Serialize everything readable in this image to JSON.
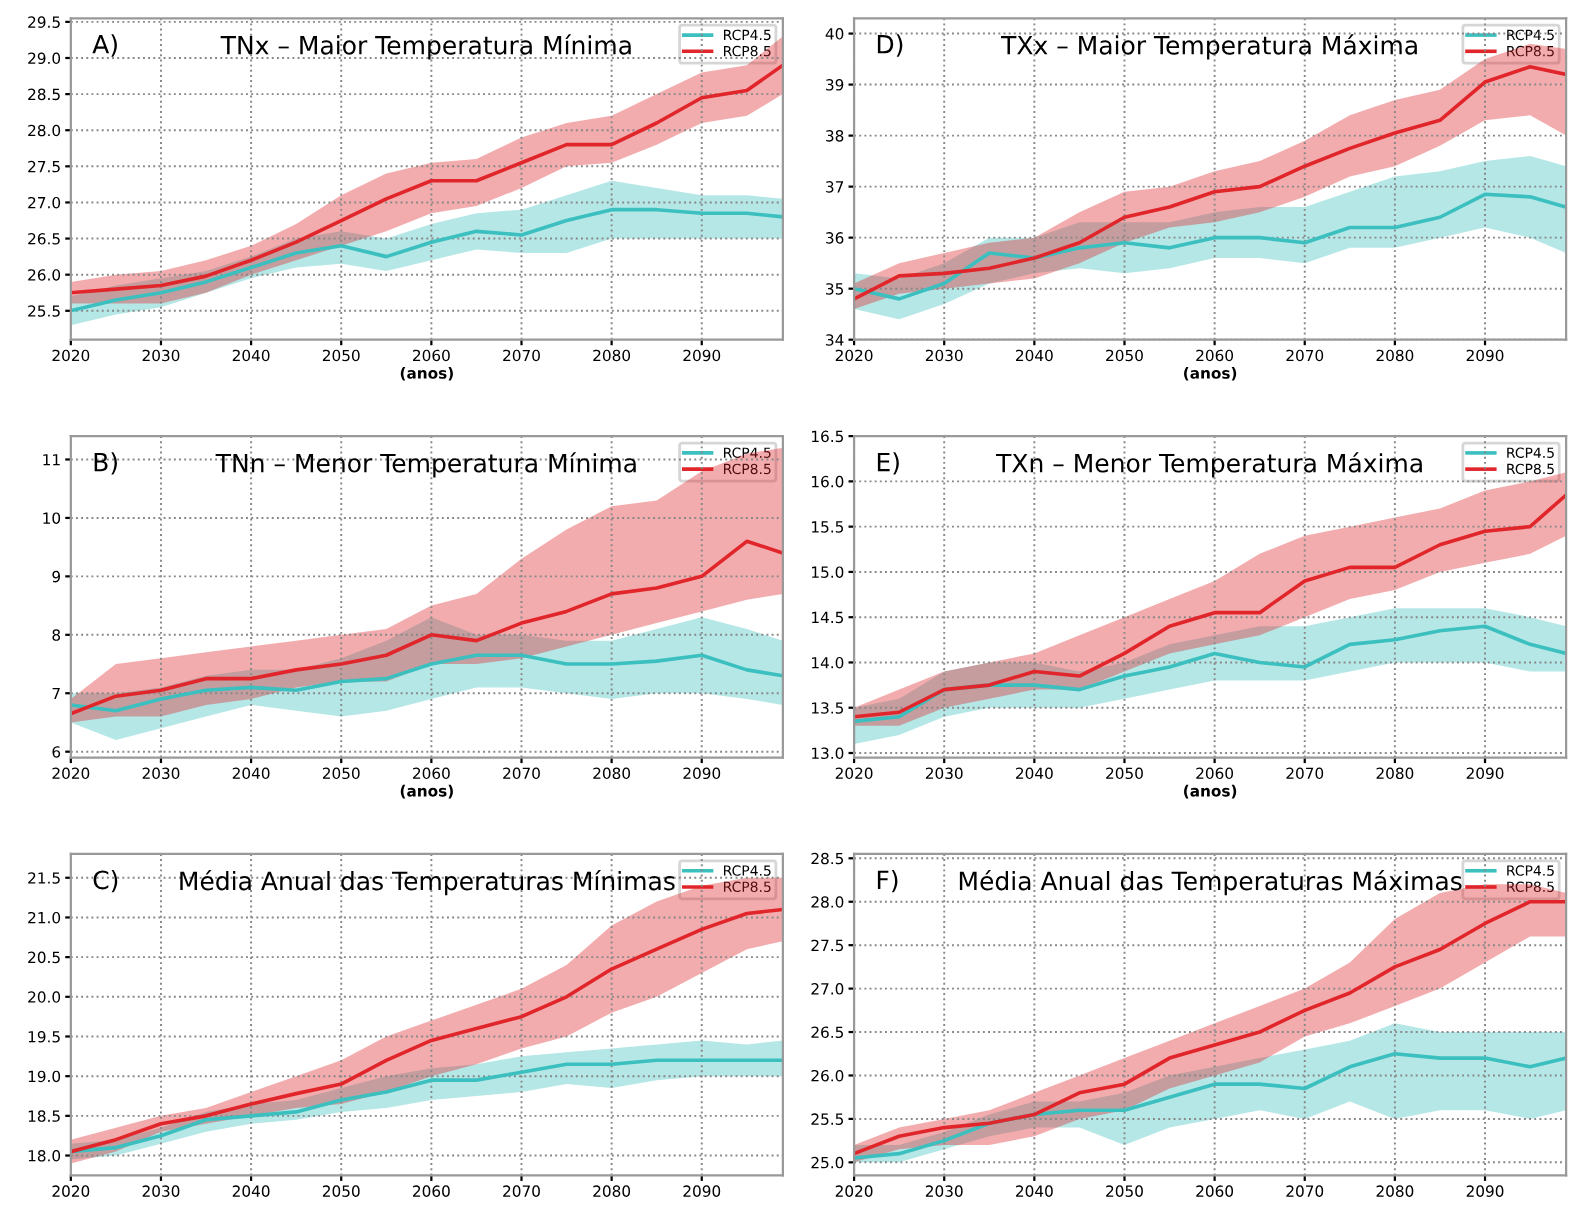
{
  "chart_data": [
    {
      "type": "line",
      "title": "TNx – Maior Temperatura Mínima",
      "annotations": [
        "A)"
      ],
      "xlabel": "(anos)",
      "xlim": [
        2020,
        2099
      ],
      "xticks": [
        2020,
        2030,
        2040,
        2050,
        2060,
        2070,
        2080,
        2090
      ],
      "ylim": [
        25.1,
        29.55
      ],
      "yticks": [
        {
          "value": 25.5,
          "label": "25.5"
        },
        {
          "value": 26,
          "label": "26.0"
        },
        {
          "value": 26.5,
          "label": "26.5"
        },
        {
          "value": 27,
          "label": "27.0"
        },
        {
          "value": 27.5,
          "label": "27.5"
        },
        {
          "value": 28,
          "label": "28.0"
        },
        {
          "value": 28.5,
          "label": "28.5"
        },
        {
          "value": 29,
          "label": "29.0"
        },
        {
          "value": 29.5,
          "label": "29.5"
        }
      ],
      "grid": true,
      "legend": "top right",
      "line_style": "solid",
      "marker": "none",
      "x": [
        2020,
        2025,
        2030,
        2035,
        2040,
        2045,
        2050,
        2055,
        2060,
        2065,
        2070,
        2075,
        2080,
        2085,
        2090,
        2095,
        2099
      ],
      "series": [
        {
          "name": "RCP4.5",
          "color": "#3cbfbf",
          "values": [
            25.5,
            25.65,
            25.75,
            25.9,
            26.1,
            26.3,
            26.4,
            26.25,
            26.45,
            26.6,
            26.55,
            26.75,
            26.9,
            26.9,
            26.85,
            26.85,
            26.8
          ],
          "lower": [
            25.3,
            25.45,
            25.55,
            25.75,
            25.95,
            26.1,
            26.15,
            26.05,
            26.2,
            26.35,
            26.3,
            26.3,
            26.5,
            26.5,
            26.5,
            26.5,
            26.5
          ],
          "upper": [
            25.7,
            25.85,
            25.95,
            26.05,
            26.25,
            26.5,
            26.6,
            26.5,
            26.7,
            26.85,
            26.9,
            27.1,
            27.3,
            27.2,
            27.1,
            27.1,
            27.05
          ]
        },
        {
          "name": "RCP8.5",
          "color": "#e0262a",
          "values": [
            25.75,
            25.8,
            25.85,
            25.98,
            26.2,
            26.45,
            26.75,
            27.05,
            27.3,
            27.3,
            27.55,
            27.8,
            27.8,
            28.1,
            28.45,
            28.55,
            28.9
          ],
          "lower": [
            25.6,
            25.6,
            25.6,
            25.75,
            26.0,
            26.2,
            26.4,
            26.6,
            26.85,
            26.95,
            27.2,
            27.5,
            27.55,
            27.8,
            28.1,
            28.2,
            28.5
          ],
          "upper": [
            25.9,
            26.0,
            26.05,
            26.2,
            26.4,
            26.7,
            27.1,
            27.4,
            27.55,
            27.6,
            27.9,
            28.1,
            28.2,
            28.5,
            28.8,
            28.9,
            29.3
          ]
        }
      ]
    },
    {
      "type": "line",
      "title": "TXx – Maior Temperatura Máxima",
      "annotations": [
        "D)"
      ],
      "xlabel": "(anos)",
      "xlim": [
        2020,
        2099
      ],
      "xticks": [
        2020,
        2030,
        2040,
        2050,
        2060,
        2070,
        2080,
        2090
      ],
      "ylim": [
        34,
        40.3
      ],
      "yticks": [
        34,
        35,
        36,
        37,
        38,
        39,
        40
      ],
      "grid": true,
      "legend": "top right",
      "line_style": "solid",
      "marker": "none",
      "x": [
        2020,
        2025,
        2030,
        2035,
        2040,
        2045,
        2050,
        2055,
        2060,
        2065,
        2070,
        2075,
        2080,
        2085,
        2090,
        2095,
        2099
      ],
      "series": [
        {
          "name": "RCP4.5",
          "color": "#3cbfbf",
          "values": [
            35.0,
            34.8,
            35.1,
            35.7,
            35.6,
            35.8,
            35.9,
            35.8,
            36.0,
            36.0,
            35.9,
            36.2,
            36.2,
            36.4,
            36.85,
            36.8,
            36.6
          ],
          "lower": [
            34.6,
            34.4,
            34.7,
            35.1,
            35.3,
            35.4,
            35.3,
            35.4,
            35.6,
            35.6,
            35.5,
            35.8,
            35.8,
            36.0,
            36.2,
            36.0,
            35.7
          ],
          "upper": [
            35.3,
            35.2,
            35.5,
            36.0,
            36.0,
            36.3,
            36.3,
            36.3,
            36.5,
            36.6,
            36.6,
            36.9,
            37.2,
            37.3,
            37.5,
            37.6,
            37.4
          ]
        },
        {
          "name": "RCP8.5",
          "color": "#e0262a",
          "values": [
            34.8,
            35.25,
            35.3,
            35.4,
            35.6,
            35.9,
            36.4,
            36.6,
            36.9,
            37.0,
            37.4,
            37.75,
            38.05,
            38.3,
            39.05,
            39.35,
            39.2
          ],
          "lower": [
            34.6,
            34.9,
            35.0,
            35.1,
            35.2,
            35.5,
            35.9,
            36.2,
            36.3,
            36.5,
            36.8,
            37.2,
            37.4,
            37.8,
            38.3,
            38.4,
            38.0
          ],
          "upper": [
            35.1,
            35.5,
            35.7,
            35.9,
            36.0,
            36.5,
            36.9,
            37.0,
            37.3,
            37.5,
            37.9,
            38.4,
            38.7,
            38.9,
            39.5,
            39.8,
            39.7
          ]
        }
      ]
    },
    {
      "type": "line",
      "title": "TNn – Menor Temperatura Mínima",
      "annotations": [
        "B)"
      ],
      "xlabel": "(anos)",
      "xlim": [
        2020,
        2099
      ],
      "xticks": [
        2020,
        2030,
        2040,
        2050,
        2060,
        2070,
        2080,
        2090
      ],
      "ylim": [
        5.9,
        11.4
      ],
      "yticks": [
        6,
        7,
        8,
        9,
        10,
        11
      ],
      "grid": true,
      "legend": "top right",
      "line_style": "solid",
      "marker": "none",
      "x": [
        2020,
        2025,
        2030,
        2035,
        2040,
        2045,
        2050,
        2055,
        2060,
        2065,
        2070,
        2075,
        2080,
        2085,
        2090,
        2095,
        2099
      ],
      "series": [
        {
          "name": "RCP4.5",
          "color": "#3cbfbf",
          "values": [
            6.8,
            6.7,
            6.9,
            7.05,
            7.1,
            7.05,
            7.2,
            7.25,
            7.5,
            7.65,
            7.65,
            7.5,
            7.5,
            7.55,
            7.65,
            7.4,
            7.3
          ],
          "lower": [
            6.5,
            6.2,
            6.4,
            6.6,
            6.8,
            6.7,
            6.6,
            6.7,
            6.9,
            7.1,
            7.1,
            7.0,
            6.9,
            7.0,
            7.0,
            6.9,
            6.8
          ],
          "upper": [
            7.0,
            7.0,
            7.1,
            7.3,
            7.4,
            7.4,
            7.6,
            7.9,
            8.3,
            8.0,
            8.0,
            7.9,
            7.9,
            8.1,
            8.3,
            8.1,
            7.9
          ]
        },
        {
          "name": "RCP8.5",
          "color": "#e0262a",
          "values": [
            6.65,
            6.95,
            7.05,
            7.25,
            7.25,
            7.4,
            7.5,
            7.65,
            8.0,
            7.9,
            8.2,
            8.4,
            8.7,
            8.8,
            9.0,
            9.6,
            9.4
          ],
          "lower": [
            6.5,
            6.6,
            6.6,
            6.8,
            6.9,
            7.1,
            7.2,
            7.2,
            7.5,
            7.5,
            7.6,
            7.8,
            8.0,
            8.2,
            8.4,
            8.6,
            8.7
          ],
          "upper": [
            6.9,
            7.5,
            7.6,
            7.7,
            7.8,
            7.9,
            8.0,
            8.1,
            8.5,
            8.7,
            9.3,
            9.8,
            10.2,
            10.3,
            10.8,
            11.1,
            11.2
          ]
        }
      ]
    },
    {
      "type": "line",
      "title": "TXn – Menor Temperatura Máxima",
      "annotations": [
        "E)"
      ],
      "xlabel": "(anos)",
      "xlim": [
        2020,
        2099
      ],
      "xticks": [
        2020,
        2030,
        2040,
        2050,
        2060,
        2070,
        2080,
        2090
      ],
      "ylim": [
        12.95,
        16.5
      ],
      "yticks": [
        {
          "value": 13,
          "label": "13.0"
        },
        {
          "value": 13.5,
          "label": "13.5"
        },
        {
          "value": 14,
          "label": "14.0"
        },
        {
          "value": 14.5,
          "label": "14.5"
        },
        {
          "value": 15,
          "label": "15.0"
        },
        {
          "value": 15.5,
          "label": "15.5"
        },
        {
          "value": 16,
          "label": "16.0"
        },
        {
          "value": 16.5,
          "label": "16.5"
        }
      ],
      "grid": true,
      "legend": "top right",
      "line_style": "solid",
      "marker": "none",
      "x": [
        2020,
        2025,
        2030,
        2035,
        2040,
        2045,
        2050,
        2055,
        2060,
        2065,
        2070,
        2075,
        2080,
        2085,
        2090,
        2095,
        2099
      ],
      "series": [
        {
          "name": "RCP4.5",
          "color": "#3cbfbf",
          "values": [
            13.35,
            13.4,
            13.7,
            13.75,
            13.75,
            13.7,
            13.85,
            13.95,
            14.1,
            14.0,
            13.95,
            14.2,
            14.25,
            14.35,
            14.4,
            14.2,
            14.1
          ],
          "lower": [
            13.1,
            13.2,
            13.4,
            13.5,
            13.5,
            13.5,
            13.6,
            13.7,
            13.8,
            13.8,
            13.8,
            13.9,
            14.0,
            14.0,
            14.0,
            13.9,
            13.9
          ],
          "upper": [
            13.5,
            13.6,
            13.9,
            14.0,
            14.0,
            13.9,
            14.0,
            14.2,
            14.3,
            14.4,
            14.4,
            14.5,
            14.6,
            14.6,
            14.6,
            14.5,
            14.4
          ]
        },
        {
          "name": "RCP8.5",
          "color": "#e0262a",
          "values": [
            13.4,
            13.45,
            13.7,
            13.75,
            13.9,
            13.85,
            14.1,
            14.4,
            14.55,
            14.55,
            14.9,
            15.05,
            15.05,
            15.3,
            15.45,
            15.5,
            15.85
          ],
          "lower": [
            13.3,
            13.3,
            13.5,
            13.6,
            13.7,
            13.7,
            13.9,
            14.1,
            14.2,
            14.3,
            14.5,
            14.7,
            14.8,
            15.0,
            15.1,
            15.2,
            15.4
          ],
          "upper": [
            13.5,
            13.7,
            13.9,
            14.0,
            14.1,
            14.3,
            14.5,
            14.7,
            14.9,
            15.2,
            15.4,
            15.5,
            15.6,
            15.7,
            15.9,
            16.0,
            16.1
          ]
        }
      ]
    },
    {
      "type": "line",
      "title": "Média Anual das Temperaturas Mínimas",
      "annotations": [
        "C)"
      ],
      "xlim": [
        2020,
        2099
      ],
      "xticks": [
        2020,
        2030,
        2040,
        2050,
        2060,
        2070,
        2080,
        2090
      ],
      "ylim": [
        17.75,
        21.8
      ],
      "yticks": [
        {
          "value": 18,
          "label": "18.0"
        },
        {
          "value": 18.5,
          "label": "18.5"
        },
        {
          "value": 19,
          "label": "19.0"
        },
        {
          "value": 19.5,
          "label": "19.5"
        },
        {
          "value": 20,
          "label": "20.0"
        },
        {
          "value": 20.5,
          "label": "20.5"
        },
        {
          "value": 21,
          "label": "21.0"
        },
        {
          "value": 21.5,
          "label": "21.5"
        }
      ],
      "grid": true,
      "legend": "top right",
      "line_style": "solid",
      "marker": "none",
      "x": [
        2020,
        2025,
        2030,
        2035,
        2040,
        2045,
        2050,
        2055,
        2060,
        2065,
        2070,
        2075,
        2080,
        2085,
        2090,
        2095,
        2099
      ],
      "series": [
        {
          "name": "RCP4.5",
          "color": "#3cbfbf",
          "values": [
            18.05,
            18.1,
            18.25,
            18.45,
            18.5,
            18.55,
            18.7,
            18.8,
            18.95,
            18.95,
            19.05,
            19.15,
            19.15,
            19.2,
            19.2,
            19.2,
            19.2
          ],
          "lower": [
            17.95,
            18.0,
            18.15,
            18.3,
            18.4,
            18.45,
            18.55,
            18.6,
            18.7,
            18.75,
            18.8,
            18.9,
            18.85,
            18.95,
            19.0,
            19.0,
            19.0
          ],
          "upper": [
            18.15,
            18.2,
            18.35,
            18.55,
            18.65,
            18.7,
            18.85,
            19.0,
            19.1,
            19.15,
            19.25,
            19.3,
            19.35,
            19.4,
            19.45,
            19.4,
            19.45
          ]
        },
        {
          "name": "RCP8.5",
          "color": "#e0262a",
          "values": [
            18.05,
            18.2,
            18.4,
            18.5,
            18.65,
            18.78,
            18.9,
            19.2,
            19.45,
            19.6,
            19.75,
            20.0,
            20.35,
            20.6,
            20.85,
            21.05,
            21.1
          ],
          "lower": [
            17.9,
            18.05,
            18.3,
            18.4,
            18.5,
            18.6,
            18.65,
            18.8,
            19.0,
            19.15,
            19.35,
            19.5,
            19.8,
            20.0,
            20.3,
            20.6,
            20.7
          ],
          "upper": [
            18.2,
            18.35,
            18.5,
            18.6,
            18.8,
            19.0,
            19.2,
            19.5,
            19.7,
            19.9,
            20.1,
            20.4,
            20.9,
            21.2,
            21.4,
            21.5,
            21.5
          ]
        }
      ]
    },
    {
      "type": "line",
      "title": "Média Anual das Temperaturas Máximas",
      "annotations": [
        "F)"
      ],
      "xlim": [
        2020,
        2099
      ],
      "xticks": [
        2020,
        2030,
        2040,
        2050,
        2060,
        2070,
        2080,
        2090
      ],
      "ylim": [
        24.85,
        28.55
      ],
      "yticks": [
        {
          "value": 25,
          "label": "25.0"
        },
        {
          "value": 25.5,
          "label": "25.5"
        },
        {
          "value": 26,
          "label": "26.0"
        },
        {
          "value": 26.5,
          "label": "26.5"
        },
        {
          "value": 27,
          "label": "27.0"
        },
        {
          "value": 27.5,
          "label": "27.5"
        },
        {
          "value": 28,
          "label": "28.0"
        },
        {
          "value": 28.5,
          "label": "28.5"
        }
      ],
      "grid": true,
      "legend": "top right",
      "line_style": "solid",
      "marker": "none",
      "x": [
        2020,
        2025,
        2030,
        2035,
        2040,
        2045,
        2050,
        2055,
        2060,
        2065,
        2070,
        2075,
        2080,
        2085,
        2090,
        2095,
        2099
      ],
      "series": [
        {
          "name": "RCP4.5",
          "color": "#3cbfbf",
          "values": [
            25.05,
            25.1,
            25.25,
            25.45,
            25.55,
            25.6,
            25.6,
            25.75,
            25.9,
            25.9,
            25.85,
            26.1,
            26.25,
            26.2,
            26.2,
            26.1,
            26.2
          ],
          "lower": [
            25.0,
            25.0,
            25.15,
            25.3,
            25.4,
            25.4,
            25.2,
            25.4,
            25.5,
            25.6,
            25.5,
            25.7,
            25.5,
            25.6,
            25.6,
            25.5,
            25.6
          ],
          "upper": [
            25.2,
            25.2,
            25.35,
            25.55,
            25.7,
            25.7,
            25.8,
            26.0,
            26.1,
            26.2,
            26.3,
            26.4,
            26.6,
            26.5,
            26.5,
            26.5,
            26.5
          ]
        },
        {
          "name": "RCP8.5",
          "color": "#e0262a",
          "values": [
            25.1,
            25.3,
            25.4,
            25.45,
            25.55,
            25.8,
            25.9,
            26.2,
            26.35,
            26.5,
            26.75,
            26.95,
            27.25,
            27.45,
            27.75,
            28.0,
            28.0
          ],
          "lower": [
            25.0,
            25.15,
            25.2,
            25.2,
            25.3,
            25.5,
            25.6,
            25.85,
            26.0,
            26.15,
            26.45,
            26.6,
            26.8,
            27.0,
            27.3,
            27.6,
            27.6
          ],
          "upper": [
            25.2,
            25.4,
            25.5,
            25.6,
            25.8,
            26.0,
            26.2,
            26.4,
            26.6,
            26.8,
            27.0,
            27.3,
            27.8,
            28.1,
            28.2,
            28.2,
            28.1
          ]
        }
      ]
    }
  ]
}
